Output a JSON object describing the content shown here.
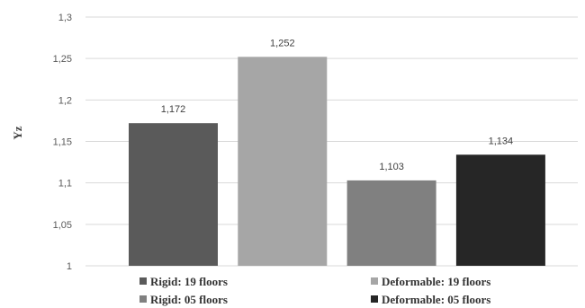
{
  "chart_data": {
    "type": "bar",
    "title": "",
    "xlabel": "",
    "ylabel": "Yz",
    "ylim": [
      1,
      1.3
    ],
    "yticks": [
      "1",
      "1,05",
      "1,1",
      "1,15",
      "1,2",
      "1,25",
      "1,3"
    ],
    "grid": true,
    "legend_placement": "bottom",
    "series": [
      {
        "name": "Rigid: 19 floors",
        "value": 1.172,
        "label": "1,172",
        "color": "#5a5a5a"
      },
      {
        "name": "Deformable: 19 floors",
        "value": 1.252,
        "label": "1,252",
        "color": "#a6a6a6"
      },
      {
        "name": "Rigid: 05 floors",
        "value": 1.103,
        "label": "1,103",
        "color": "#808080"
      },
      {
        "name": "Deformable: 05 floors",
        "value": 1.134,
        "label": "1,134",
        "color": "#262626"
      }
    ]
  }
}
